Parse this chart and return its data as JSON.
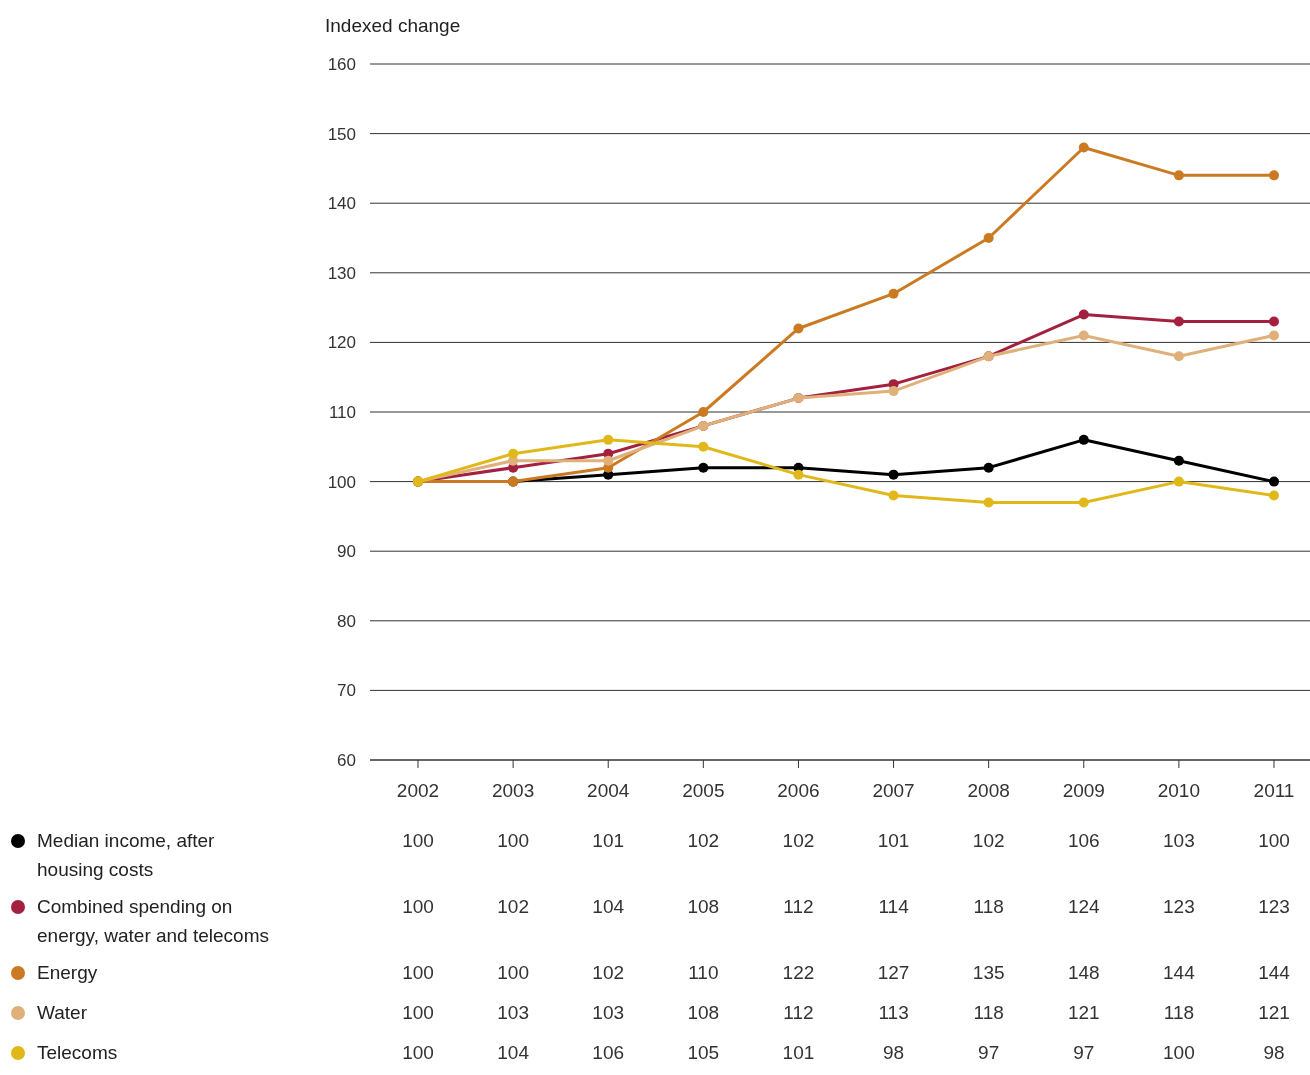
{
  "chart_data": {
    "type": "line",
    "ylabel": "Indexed change",
    "categories": [
      "2002",
      "2003",
      "2004",
      "2005",
      "2006",
      "2007",
      "2008",
      "2009",
      "2010",
      "2011"
    ],
    "series": [
      {
        "name": "Median income, after housing costs",
        "color": "#000000",
        "values": [
          100,
          100,
          101,
          102,
          102,
          101,
          102,
          106,
          103,
          100
        ]
      },
      {
        "name": "Combined spending on energy, water and telecoms",
        "color": "#a3213f",
        "values": [
          100,
          102,
          104,
          108,
          112,
          114,
          118,
          124,
          123,
          123
        ]
      },
      {
        "name": "Energy",
        "color": "#cc7a22",
        "values": [
          100,
          100,
          102,
          110,
          122,
          127,
          135,
          148,
          144,
          144
        ]
      },
      {
        "name": "Water",
        "color": "#e0b07a",
        "values": [
          100,
          103,
          103,
          108,
          112,
          113,
          118,
          121,
          118,
          121
        ]
      },
      {
        "name": "Telecoms",
        "color": "#e0b81a",
        "values": [
          100,
          104,
          106,
          105,
          101,
          98,
          97,
          97,
          100,
          98
        ]
      }
    ],
    "ylim": [
      60,
      160
    ],
    "yticks": [
      60,
      70,
      80,
      90,
      100,
      110,
      120,
      130,
      140,
      150,
      160
    ],
    "grid": "y",
    "legend": "bottom",
    "marker": "circle",
    "line_style": "solid",
    "data_labels": true
  }
}
